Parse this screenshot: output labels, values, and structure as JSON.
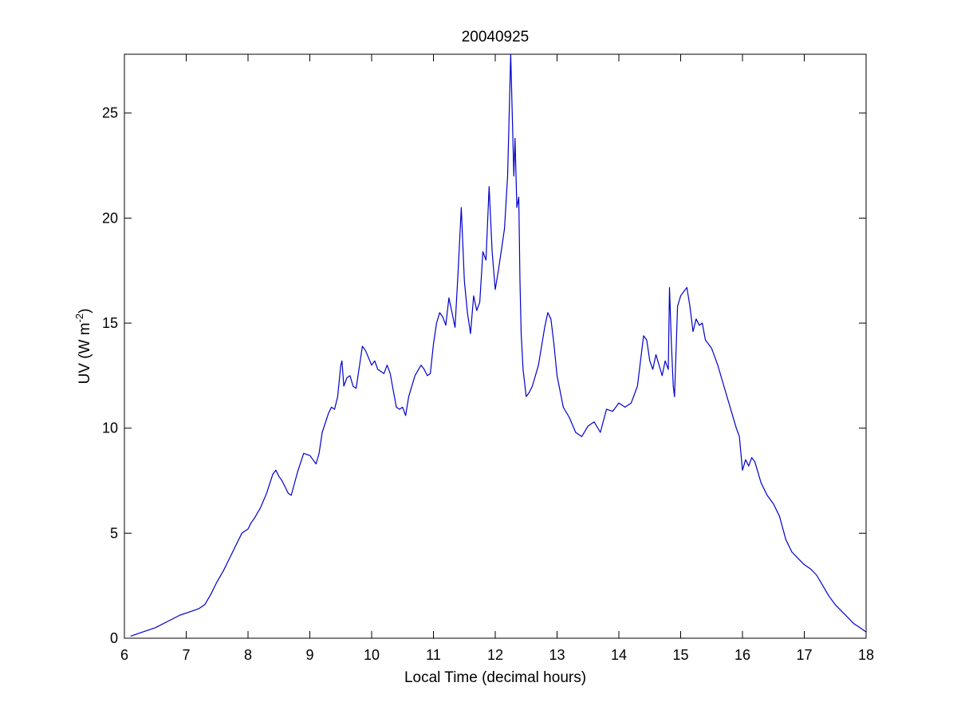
{
  "chart_data": {
    "type": "line",
    "title": "20040925",
    "xlabel": "Local Time (decimal hours)",
    "ylabel_main": "UV (W m",
    "ylabel_sup": "-2",
    "ylabel_close": ")",
    "xlim": [
      6,
      18
    ],
    "ylim": [
      0,
      27.8
    ],
    "xticks": [
      6,
      7,
      8,
      9,
      10,
      11,
      12,
      13,
      14,
      15,
      16,
      17,
      18
    ],
    "yticks": [
      0,
      5,
      10,
      15,
      20,
      25
    ],
    "grid": false,
    "line_color": "#0000cc",
    "series": [
      {
        "x": [
          6.1,
          6.3,
          6.5,
          6.7,
          6.9,
          7.0,
          7.1,
          7.2,
          7.3,
          7.4,
          7.5,
          7.6,
          7.7,
          7.8,
          7.9,
          8.0,
          8.05,
          8.1,
          8.2,
          8.3,
          8.4,
          8.45,
          8.5,
          8.55,
          8.6,
          8.65,
          8.7,
          8.8,
          8.9,
          9.0,
          9.05,
          9.1,
          9.15,
          9.2,
          9.3,
          9.35,
          9.4,
          9.45,
          9.5,
          9.52,
          9.55,
          9.6,
          9.65,
          9.7,
          9.75,
          9.8,
          9.85,
          9.9,
          10.0,
          10.05,
          10.1,
          10.2,
          10.25,
          10.3,
          10.35,
          10.4,
          10.45,
          10.5,
          10.55,
          10.6,
          10.7,
          10.8,
          10.85,
          10.9,
          10.95,
          11.0,
          11.05,
          11.1,
          11.15,
          11.2,
          11.25,
          11.3,
          11.35,
          11.4,
          11.45,
          11.5,
          11.55,
          11.6,
          11.65,
          11.7,
          11.75,
          11.8,
          11.85,
          11.9,
          11.95,
          12.0,
          12.05,
          12.1,
          12.15,
          12.2,
          12.25,
          12.3,
          12.32,
          12.35,
          12.38,
          12.4,
          12.42,
          12.45,
          12.5,
          12.55,
          12.6,
          12.7,
          12.8,
          12.85,
          12.9,
          12.95,
          13.0,
          13.1,
          13.2,
          13.3,
          13.4,
          13.5,
          13.6,
          13.7,
          13.8,
          13.9,
          14.0,
          14.1,
          14.2,
          14.3,
          14.4,
          14.45,
          14.5,
          14.55,
          14.6,
          14.65,
          14.7,
          14.75,
          14.8,
          14.82,
          14.85,
          14.88,
          14.9,
          14.95,
          15.0,
          15.05,
          15.1,
          15.15,
          15.2,
          15.25,
          15.3,
          15.35,
          15.4,
          15.5,
          15.6,
          15.7,
          15.8,
          15.9,
          15.95,
          16.0,
          16.05,
          16.1,
          16.15,
          16.2,
          16.3,
          16.4,
          16.5,
          16.6,
          16.7,
          16.8,
          16.9,
          17.0,
          17.1,
          17.2,
          17.3,
          17.4,
          17.5,
          17.6,
          17.7,
          17.8,
          17.9,
          18.0
        ],
        "y": [
          0.1,
          0.3,
          0.5,
          0.8,
          1.1,
          1.2,
          1.3,
          1.4,
          1.6,
          2.1,
          2.7,
          3.2,
          3.8,
          4.4,
          5.0,
          5.2,
          5.5,
          5.7,
          6.2,
          6.9,
          7.8,
          8.0,
          7.7,
          7.5,
          7.2,
          6.9,
          6.8,
          7.9,
          8.8,
          8.7,
          8.5,
          8.3,
          8.8,
          9.8,
          10.7,
          11.0,
          10.9,
          11.5,
          13.0,
          13.2,
          12.0,
          12.4,
          12.5,
          12.0,
          11.9,
          12.9,
          13.9,
          13.7,
          13.0,
          13.2,
          12.8,
          12.6,
          13.0,
          12.6,
          11.8,
          11.0,
          10.9,
          11.0,
          10.6,
          11.5,
          12.5,
          13.0,
          12.8,
          12.5,
          12.6,
          14.0,
          15.0,
          15.5,
          15.3,
          14.9,
          16.2,
          15.5,
          14.8,
          17.5,
          20.5,
          17.0,
          15.5,
          14.5,
          16.3,
          15.6,
          16.0,
          18.4,
          18.0,
          21.5,
          18.4,
          16.6,
          17.5,
          18.5,
          19.5,
          22.0,
          27.8,
          22.0,
          23.8,
          20.5,
          21.0,
          17.0,
          14.5,
          12.8,
          11.5,
          11.7,
          12.0,
          13.0,
          14.8,
          15.5,
          15.2,
          14.0,
          12.5,
          11.0,
          10.5,
          9.8,
          9.6,
          10.1,
          10.3,
          9.8,
          10.9,
          10.8,
          11.2,
          11.0,
          11.2,
          12.0,
          14.4,
          14.2,
          13.2,
          12.8,
          13.5,
          13.0,
          12.5,
          13.2,
          12.8,
          16.7,
          14.0,
          12.0,
          11.5,
          15.8,
          16.3,
          16.5,
          16.7,
          15.8,
          14.6,
          15.2,
          14.9,
          15.0,
          14.2,
          13.8,
          13.0,
          12.0,
          11.0,
          10.0,
          9.6,
          8.0,
          8.5,
          8.2,
          8.6,
          8.4,
          7.4,
          6.8,
          6.4,
          5.8,
          4.7,
          4.1,
          3.8,
          3.5,
          3.3,
          3.0,
          2.5,
          2.0,
          1.6,
          1.3,
          1.0,
          0.7,
          0.5,
          0.3
        ]
      }
    ]
  }
}
